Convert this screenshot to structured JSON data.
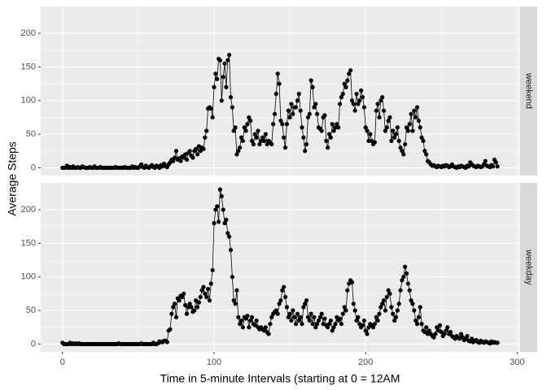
{
  "chart_data": {
    "type": "line",
    "x_label": "Time in 5-minute Intervals (starting at 0 = 12AM",
    "y_label": "Average Steps",
    "xlim": [
      -14.4,
      301.4
    ],
    "xticks": [
      0,
      100,
      200,
      300
    ],
    "ylim": [
      -11.5,
      240
    ],
    "yticks": [
      0,
      50,
      100,
      150,
      200
    ],
    "grid": true,
    "color": "#000000",
    "x": [
      0,
      1,
      2,
      3,
      4,
      5,
      6,
      7,
      8,
      9,
      10,
      11,
      12,
      13,
      14,
      15,
      16,
      17,
      18,
      19,
      20,
      21,
      22,
      23,
      24,
      25,
      26,
      27,
      28,
      29,
      30,
      31,
      32,
      33,
      34,
      35,
      36,
      37,
      38,
      39,
      40,
      41,
      42,
      43,
      44,
      45,
      46,
      47,
      48,
      49,
      50,
      51,
      52,
      53,
      54,
      55,
      56,
      57,
      58,
      59,
      60,
      61,
      62,
      63,
      64,
      65,
      66,
      67,
      68,
      69,
      70,
      71,
      72,
      73,
      74,
      75,
      76,
      77,
      78,
      79,
      80,
      81,
      82,
      83,
      84,
      85,
      86,
      87,
      88,
      89,
      90,
      91,
      92,
      93,
      94,
      95,
      96,
      97,
      98,
      99,
      100,
      101,
      102,
      103,
      104,
      105,
      106,
      107,
      108,
      109,
      110,
      111,
      112,
      113,
      114,
      115,
      116,
      117,
      118,
      119,
      120,
      121,
      122,
      123,
      124,
      125,
      126,
      127,
      128,
      129,
      130,
      131,
      132,
      133,
      134,
      135,
      136,
      137,
      138,
      139,
      140,
      141,
      142,
      143,
      144,
      145,
      146,
      147,
      148,
      149,
      150,
      151,
      152,
      153,
      154,
      155,
      156,
      157,
      158,
      159,
      160,
      161,
      162,
      163,
      164,
      165,
      166,
      167,
      168,
      169,
      170,
      171,
      172,
      173,
      174,
      175,
      176,
      177,
      178,
      179,
      180,
      181,
      182,
      183,
      184,
      185,
      186,
      187,
      188,
      189,
      190,
      191,
      192,
      193,
      194,
      195,
      196,
      197,
      198,
      199,
      200,
      201,
      202,
      203,
      204,
      205,
      206,
      207,
      208,
      209,
      210,
      211,
      212,
      213,
      214,
      215,
      216,
      217,
      218,
      219,
      220,
      221,
      222,
      223,
      224,
      225,
      226,
      227,
      228,
      229,
      230,
      231,
      232,
      233,
      234,
      235,
      236,
      237,
      238,
      239,
      240,
      241,
      242,
      243,
      244,
      245,
      246,
      247,
      248,
      249,
      250,
      251,
      252,
      253,
      254,
      255,
      256,
      257,
      258,
      259,
      260,
      261,
      262,
      263,
      264,
      265,
      266,
      267,
      268,
      269,
      270,
      271,
      272,
      273,
      274,
      275,
      276,
      277,
      278,
      279,
      280,
      281,
      282,
      283,
      284,
      285,
      286,
      287
    ],
    "panels": [
      {
        "name": "weekend",
        "values": [
          0,
          0,
          0,
          3,
          0,
          1,
          0,
          2,
          0,
          0,
          1,
          0,
          0,
          2,
          1,
          0,
          0,
          0,
          1,
          0,
          0,
          2,
          0,
          0,
          0,
          1,
          0,
          0,
          0,
          0,
          0,
          0,
          0,
          0,
          0,
          1,
          0,
          0,
          0,
          0,
          0,
          1,
          0,
          0,
          0,
          0,
          2,
          0,
          1,
          0,
          0,
          2,
          5,
          1,
          0,
          3,
          1,
          0,
          2,
          4,
          1,
          0,
          3,
          2,
          0,
          4,
          2,
          6,
          3,
          1,
          5,
          8,
          12,
          10,
          15,
          25,
          12,
          14,
          10,
          17,
          15,
          20,
          12,
          22,
          25,
          18,
          15,
          25,
          28,
          20,
          32,
          25,
          30,
          28,
          45,
          55,
          88,
          90,
          88,
          75,
          120,
          140,
          132,
          162,
          160,
          100,
          135,
          155,
          120,
          160,
          168,
          105,
          90,
          55,
          60,
          20,
          25,
          30,
          45,
          40,
          60,
          55,
          65,
          75,
          70,
          40,
          35,
          50,
          45,
          55,
          35,
          40,
          45,
          40,
          50,
          35,
          40,
          38,
          35,
          65,
          80,
          110,
          140,
          125,
          70,
          65,
          45,
          30,
          65,
          85,
          75,
          95,
          80,
          90,
          90,
          100,
          110,
          85,
          60,
          45,
          25,
          35,
          75,
          80,
          130,
          120,
          90,
          95,
          80,
          60,
          58,
          55,
          75,
          78,
          40,
          30,
          50,
          45,
          65,
          55,
          60,
          65,
          60,
          95,
          105,
          110,
          125,
          120,
          130,
          140,
          145,
          100,
          95,
          85,
          110,
          95,
          100,
          115,
          105,
          90,
          60,
          55,
          40,
          50,
          40,
          35,
          38,
          85,
          95,
          75,
          100,
          105,
          85,
          55,
          60,
          70,
          75,
          40,
          55,
          45,
          50,
          60,
          40,
          30,
          25,
          20,
          35,
          60,
          55,
          65,
          80,
          55,
          85,
          75,
          90,
          70,
          60,
          45,
          40,
          25,
          20,
          10,
          8,
          5,
          3,
          4,
          2,
          1,
          3,
          2,
          1,
          3,
          2,
          4,
          3,
          1,
          2,
          5,
          2,
          1,
          0,
          2,
          1,
          3,
          2,
          1,
          0,
          3,
          2,
          8,
          5,
          3,
          2,
          1,
          3,
          2,
          1,
          2,
          5,
          10,
          3,
          2,
          1,
          4,
          2,
          12,
          8,
          2
        ]
      },
      {
        "name": "weekday",
        "values": [
          2,
          0,
          0,
          0,
          0,
          2,
          0,
          1,
          0,
          1,
          0,
          1,
          0,
          0,
          0,
          0,
          0,
          0,
          0,
          0,
          0,
          0,
          0,
          0,
          0,
          0,
          0,
          0,
          0,
          0,
          0,
          0,
          0,
          0,
          0,
          0,
          0,
          1,
          0,
          0,
          0,
          0,
          0,
          0,
          0,
          0,
          0,
          0,
          0,
          0,
          0,
          0,
          1,
          0,
          0,
          0,
          0,
          0,
          0,
          0,
          2,
          0,
          0,
          1,
          4,
          3,
          3,
          5,
          5,
          3,
          20,
          22,
          45,
          55,
          60,
          40,
          68,
          65,
          72,
          70,
          75,
          58,
          45,
          55,
          60,
          55,
          48,
          50,
          65,
          55,
          62,
          70,
          80,
          85,
          75,
          70,
          82,
          65,
          90,
          110,
          180,
          200,
          205,
          182,
          230,
          220,
          200,
          180,
          185,
          165,
          160,
          140,
          100,
          65,
          60,
          80,
          40,
          30,
          35,
          25,
          40,
          38,
          42,
          25,
          35,
          40,
          30,
          28,
          35,
          25,
          22,
          25,
          22,
          20,
          25,
          18,
          15,
          30,
          40,
          45,
          48,
          50,
          45,
          60,
          65,
          80,
          85,
          70,
          55,
          40,
          45,
          35,
          50,
          40,
          30,
          45,
          35,
          40,
          30,
          55,
          60,
          65,
          40,
          35,
          45,
          30,
          40,
          25,
          30,
          35,
          40,
          45,
          30,
          38,
          28,
          25,
          30,
          35,
          20,
          25,
          30,
          40,
          35,
          38,
          30,
          45,
          55,
          50,
          80,
          90,
          95,
          92,
          60,
          50,
          35,
          40,
          30,
          25,
          28,
          35,
          20,
          15,
          25,
          30,
          28,
          25,
          30,
          40,
          35,
          45,
          55,
          60,
          65,
          50,
          70,
          80,
          75,
          55,
          45,
          35,
          40,
          50,
          60,
          80,
          95,
          100,
          115,
          105,
          90,
          80,
          65,
          60,
          50,
          35,
          30,
          40,
          55,
          30,
          20,
          18,
          25,
          15,
          20,
          15,
          12,
          10,
          15,
          25,
          20,
          28,
          18,
          12,
          15,
          20,
          25,
          15,
          18,
          12,
          10,
          8,
          12,
          10,
          8,
          15,
          10,
          6,
          8,
          12,
          5,
          4,
          8,
          3,
          5,
          6,
          3,
          2,
          5,
          3,
          2,
          4,
          3,
          2,
          1,
          4,
          2,
          3,
          2,
          2
        ]
      }
    ]
  }
}
